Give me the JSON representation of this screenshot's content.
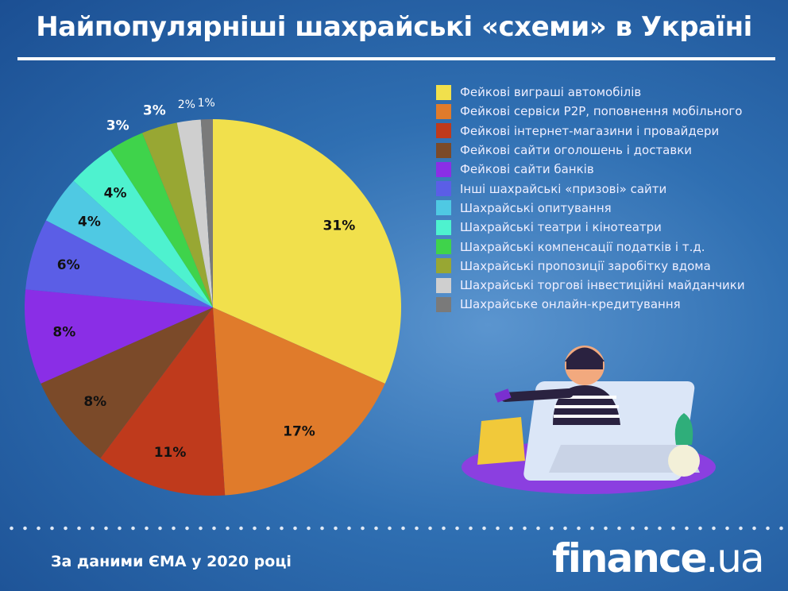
{
  "title": "Найпопулярніші шахрайські «схеми» в Україні",
  "footer": {
    "source": "За даними ЄМА у 2020 році",
    "logo_main": "finance",
    "logo_tld": ".ua"
  },
  "chart_data": {
    "type": "pie",
    "title": "Найпопулярніші шахрайські «схеми» в Україні",
    "legend_position": "right",
    "categories": [
      "Фейкові виграші автомобілів",
      "Фейкові сервіси P2P, поповнення мобільного",
      "Фейкові інтернет-магазини і провайдери",
      "Фейкові сайти оголошень і доставки",
      "Фейкові сайти банків",
      "Інші шахрайські «призові» сайти",
      "Шахрайські опитування",
      "Шахрайські театри і кінотеатри",
      "Шахрайські компенсації податків і т.д.",
      "Шахрайські пропозиції заробітку вдома",
      "Шахрайські торгові інвестиційні майданчики",
      "Шахрайське онлайн-кредитування"
    ],
    "values": [
      31,
      17,
      11,
      8,
      8,
      6,
      4,
      4,
      3,
      3,
      2,
      1
    ],
    "labels": [
      "31%",
      "17%",
      "11%",
      "8%",
      "8%",
      "6%",
      "4%",
      "4%",
      "3%",
      "3%",
      "2%",
      "1%"
    ],
    "colors": [
      "#f1e04c",
      "#e07b2b",
      "#bf3a1c",
      "#7b4a29",
      "#8a2ee6",
      "#5b5ee6",
      "#4fc9e3",
      "#4ef2cf",
      "#3fd34b",
      "#98a733",
      "#cfcfcf",
      "#7a7a7a"
    ]
  }
}
